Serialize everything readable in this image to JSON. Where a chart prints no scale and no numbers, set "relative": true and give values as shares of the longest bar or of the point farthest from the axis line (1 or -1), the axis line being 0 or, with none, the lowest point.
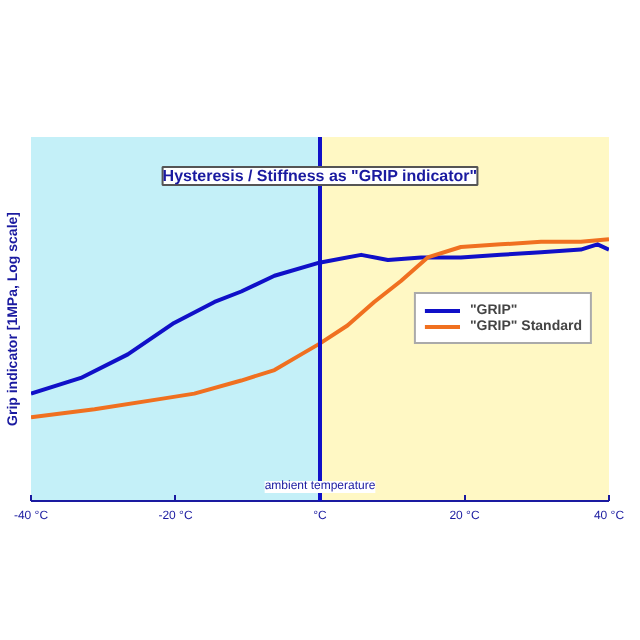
{
  "chart_data": {
    "type": "line",
    "title": "Hysteresis / Stiffness as \"GRIP indicator\"",
    "ylabel": "Grip indicator [1MPa, Log scale]",
    "relative": true,
    "xlim": [
      -40,
      40
    ],
    "xticks": [
      {
        "value": -40,
        "label": "-40 °C"
      },
      {
        "value": -20,
        "label": "-20 °C"
      },
      {
        "value": 0,
        "label": "°C"
      },
      {
        "value": 20,
        "label": "20 °C"
      },
      {
        "value": 40,
        "label": "40 °C"
      }
    ],
    "series": [
      {
        "name": "\"GRIP\"",
        "color": "#1010c8",
        "x": [
          -40,
          -33.1,
          -26.6,
          -20.2,
          -14.6,
          -10.9,
          -6.3,
          -0.1,
          5.7,
          9.4,
          14.0,
          19.5,
          25.0,
          30.6,
          36.1,
          38.4,
          40
        ],
        "values": [
          0.41,
          0.47,
          0.56,
          0.68,
          0.76,
          0.8,
          0.86,
          0.91,
          0.94,
          0.92,
          0.93,
          0.93,
          0.94,
          0.95,
          0.96,
          0.98,
          0.96
        ]
      },
      {
        "name": "\"GRIP\" Standard",
        "color": "#f07020",
        "x": [
          -40,
          -31.2,
          -22.0,
          -17.4,
          -10.9,
          -6.3,
          -2.6,
          -0.1,
          3.8,
          7.5,
          11.2,
          14.9,
          19.5,
          25.0,
          30.6,
          36.1,
          40
        ],
        "values": [
          0.32,
          0.35,
          0.39,
          0.41,
          0.46,
          0.5,
          0.56,
          0.6,
          0.67,
          0.76,
          0.84,
          0.93,
          0.97,
          0.98,
          0.99,
          0.99,
          1
        ]
      }
    ],
    "ref_lines": [
      {
        "axis": "x",
        "value": 0,
        "label": "ambient temperature",
        "color": "#1010c8"
      }
    ],
    "bands": [
      {
        "axis": "x",
        "from": -40,
        "to": 0,
        "color": "#c4f0f8"
      },
      {
        "axis": "x",
        "from": 0,
        "to": 40,
        "color": "#fff8c4"
      }
    ],
    "legend": "right",
    "line_style": "solid",
    "marker": "none"
  }
}
